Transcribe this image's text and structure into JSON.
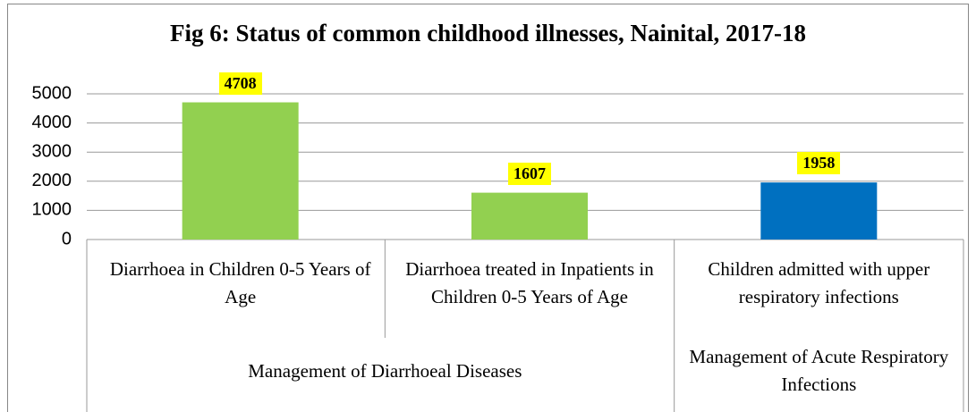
{
  "chart_data": {
    "type": "bar",
    "title": "Fig 6: Status of common childhood illnesses, Nainital, 2017-18",
    "groups": [
      {
        "name": "Management of Diarrhoeal Diseases",
        "categories": [
          "Diarrhoea in Children 0-5 Years of Age",
          "Diarrhoea treated in Inpatients in Children 0-5 Years of Age"
        ]
      },
      {
        "name": "Management of Acute Respiratory Infections",
        "categories": [
          "Children admitted with upper respiratory infections"
        ]
      }
    ],
    "values": [
      4708,
      1607,
      1958
    ],
    "colors": [
      "#92d050",
      "#92d050",
      "#0070c0"
    ],
    "ylim": [
      0,
      5000
    ],
    "yticks": [
      0,
      1000,
      2000,
      3000,
      4000,
      5000
    ],
    "grid": true
  }
}
